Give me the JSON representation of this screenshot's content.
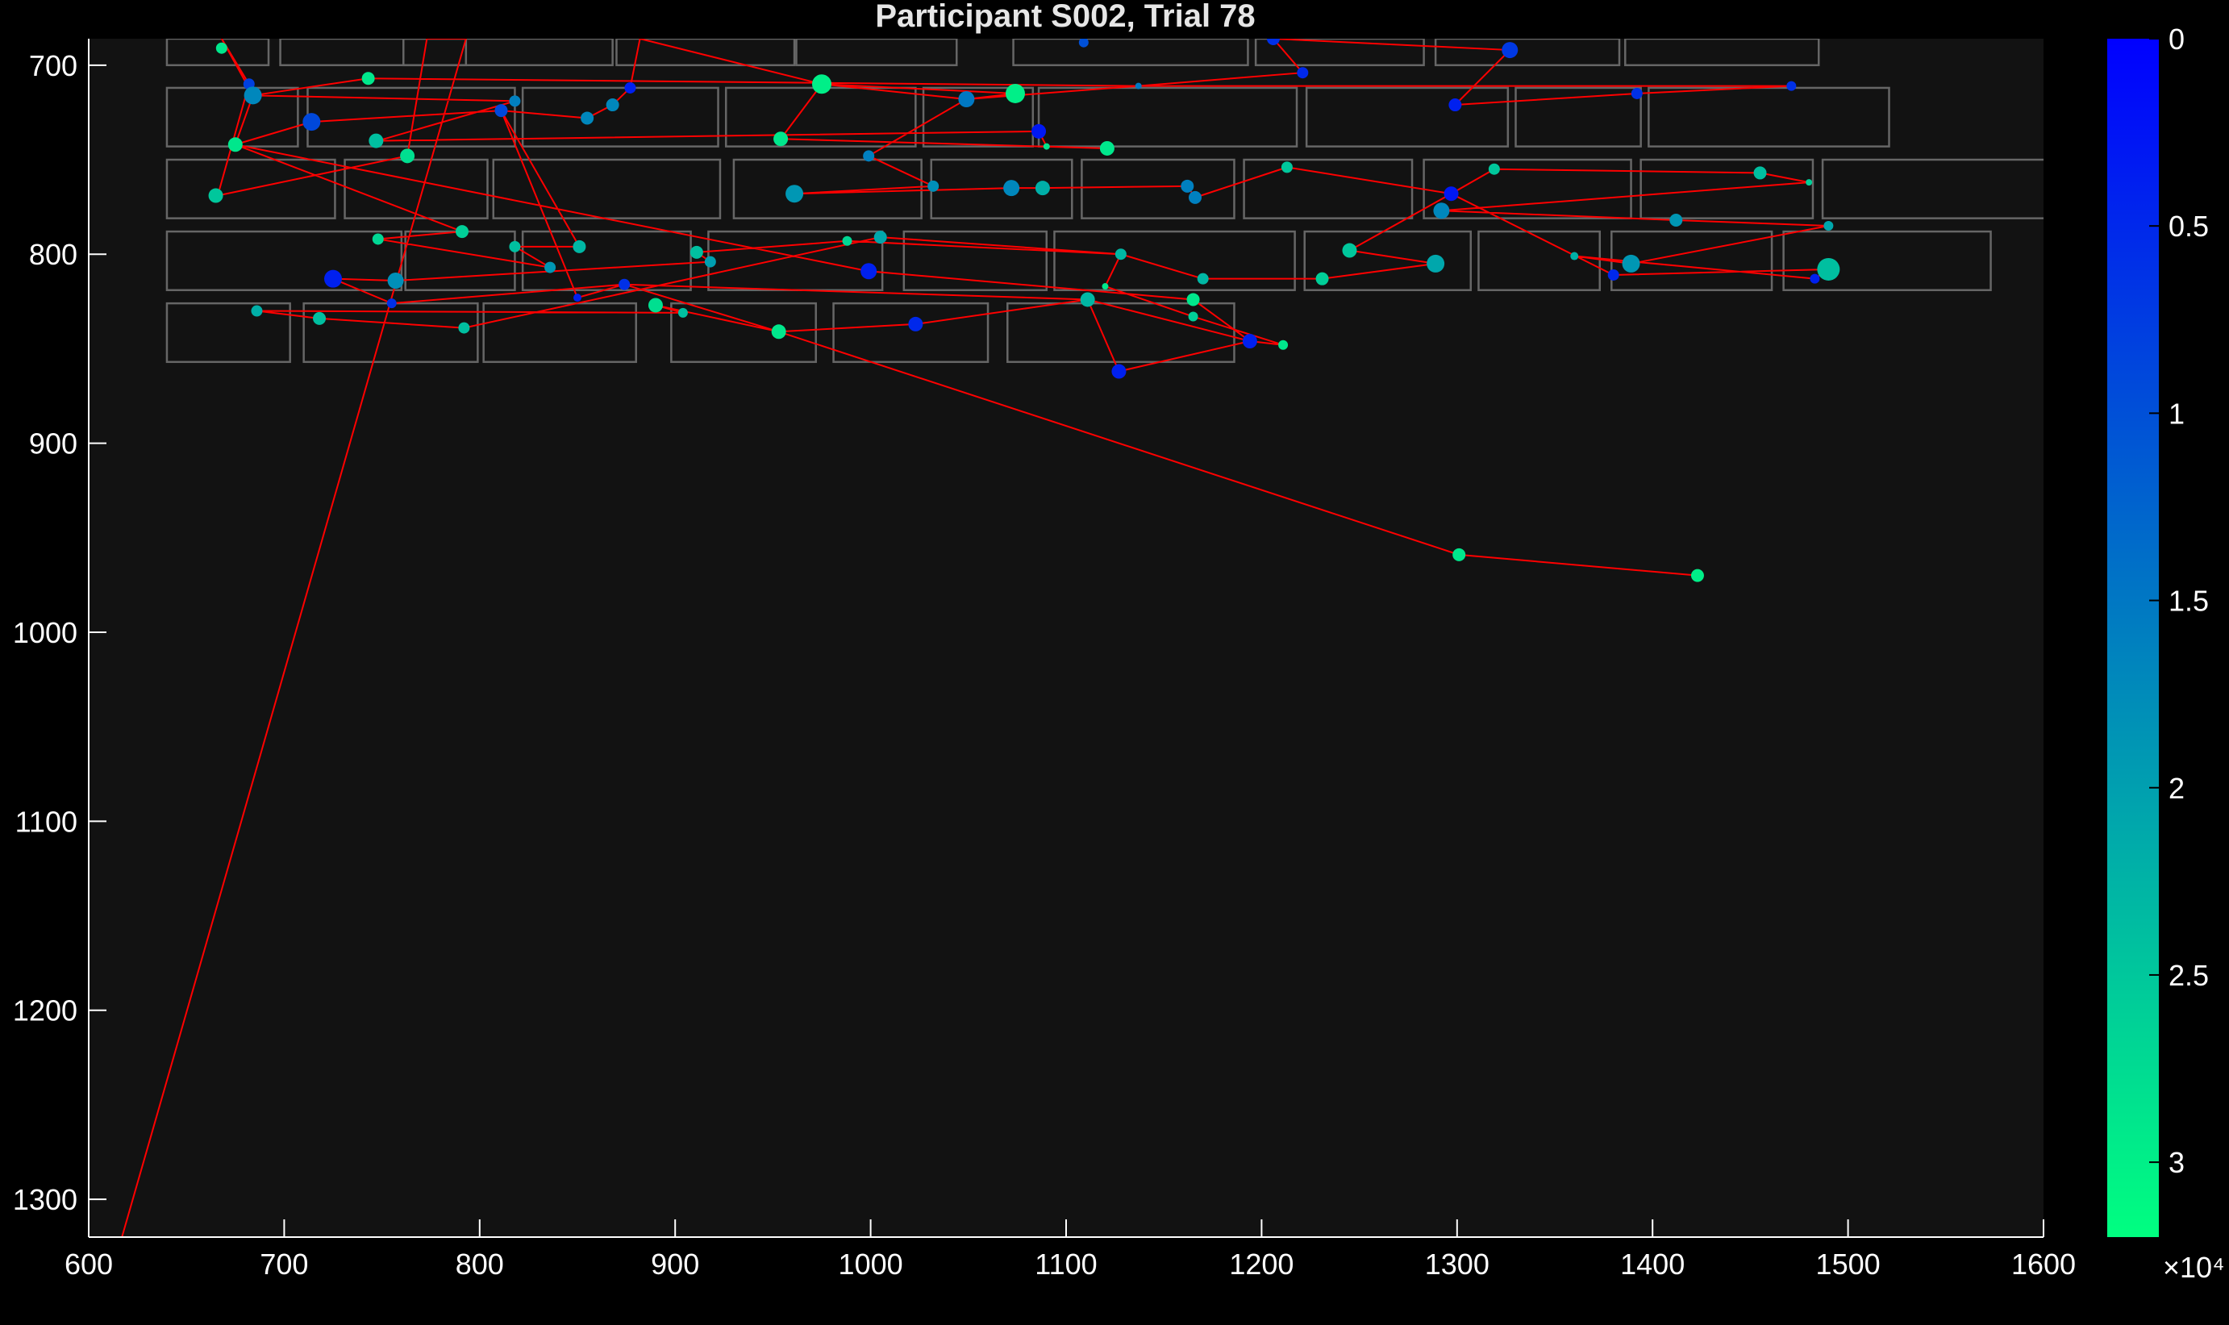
{
  "chart_data": {
    "type": "scatter",
    "title": "Participant S002, Trial 78",
    "xlabel": "",
    "ylabel": "",
    "xlim": [
      600,
      1600
    ],
    "ylim": [
      1320,
      686
    ],
    "y_reversed": true,
    "grid": false,
    "background": "#121212",
    "xticks": [
      600,
      700,
      800,
      900,
      1000,
      1100,
      1200,
      1300,
      1400,
      1500,
      1600
    ],
    "yticks": [
      700,
      800,
      900,
      1000,
      1100,
      1200,
      1300
    ],
    "colorbar": {
      "range": [
        0,
        3.2
      ],
      "ticks": [
        0,
        0.5,
        1,
        1.5,
        2,
        2.5,
        3
      ],
      "multiplier": "×10⁴",
      "reversed": true,
      "colors": [
        "#0000ff",
        "#00ff80"
      ]
    },
    "line_color": "#ff0000",
    "box_color": "#666666",
    "word_boxes": [
      [
        640,
        686,
        692,
        700
      ],
      [
        698,
        686,
        793,
        700
      ],
      [
        761,
        686,
        868,
        700
      ],
      [
        870,
        686,
        961,
        700
      ],
      [
        962,
        686,
        1044,
        700
      ],
      [
        1073,
        686,
        1193,
        700
      ],
      [
        1197,
        686,
        1283,
        700
      ],
      [
        1289,
        686,
        1383,
        700
      ],
      [
        1386,
        686,
        1485,
        700
      ],
      [
        640,
        712,
        707,
        743
      ],
      [
        712,
        712,
        818,
        743
      ],
      [
        822,
        712,
        922,
        743
      ],
      [
        926,
        712,
        1023,
        743
      ],
      [
        1027,
        712,
        1083,
        743
      ],
      [
        1086,
        712,
        1218,
        743
      ],
      [
        1223,
        712,
        1326,
        743
      ],
      [
        1330,
        712,
        1394,
        743
      ],
      [
        1398,
        712,
        1521,
        743
      ],
      [
        640,
        750,
        726,
        781
      ],
      [
        731,
        750,
        804,
        781
      ],
      [
        807,
        750,
        923,
        781
      ],
      [
        930,
        750,
        1026,
        781
      ],
      [
        1031,
        750,
        1103,
        781
      ],
      [
        1108,
        750,
        1186,
        781
      ],
      [
        1191,
        750,
        1277,
        781
      ],
      [
        1283,
        750,
        1389,
        781
      ],
      [
        1394,
        750,
        1482,
        781
      ],
      [
        1487,
        750,
        1604,
        781
      ],
      [
        640,
        788,
        760,
        819
      ],
      [
        762,
        788,
        818,
        819
      ],
      [
        822,
        788,
        908,
        819
      ],
      [
        917,
        788,
        1006,
        819
      ],
      [
        1017,
        788,
        1090,
        819
      ],
      [
        1094,
        788,
        1217,
        819
      ],
      [
        1222,
        788,
        1307,
        819
      ],
      [
        1311,
        788,
        1373,
        819
      ],
      [
        1379,
        788,
        1461,
        819
      ],
      [
        1467,
        788,
        1573,
        819
      ],
      [
        640,
        826,
        703,
        857
      ],
      [
        710,
        826,
        799,
        857
      ],
      [
        802,
        826,
        880,
        857
      ],
      [
        898,
        826,
        972,
        857
      ],
      [
        981,
        826,
        1060,
        857
      ],
      [
        1070,
        826,
        1186,
        857
      ]
    ],
    "fixations": [
      {
        "x": 668,
        "y": 691,
        "d": 2.9,
        "r": 7
      },
      {
        "x": 743,
        "y": 707,
        "d": 2.9,
        "r": 8
      },
      {
        "x": 682,
        "y": 710,
        "d": 0.8,
        "r": 7
      },
      {
        "x": 684,
        "y": 716,
        "d": 1.7,
        "r": 11
      },
      {
        "x": 714,
        "y": 730,
        "d": 0.9,
        "r": 11
      },
      {
        "x": 811,
        "y": 724,
        "d": 0.9,
        "r": 8
      },
      {
        "x": 818,
        "y": 719,
        "d": 1.6,
        "r": 7
      },
      {
        "x": 855,
        "y": 728,
        "d": 1.7,
        "r": 8
      },
      {
        "x": 868,
        "y": 721,
        "d": 1.7,
        "r": 8
      },
      {
        "x": 877,
        "y": 712,
        "d": 0.4,
        "r": 7
      },
      {
        "x": 975,
        "y": 710,
        "d": 3.0,
        "r": 12
      },
      {
        "x": 1049,
        "y": 718,
        "d": 1.5,
        "r": 10
      },
      {
        "x": 1074,
        "y": 715,
        "d": 3.0,
        "r": 12
      },
      {
        "x": 1109,
        "y": 688,
        "d": 1.0,
        "r": 6
      },
      {
        "x": 1137,
        "y": 711,
        "d": 1.5,
        "r": 4
      },
      {
        "x": 1206,
        "y": 686,
        "d": 0.6,
        "r": 8
      },
      {
        "x": 1221,
        "y": 704,
        "d": 0.5,
        "r": 7
      },
      {
        "x": 1327,
        "y": 692,
        "d": 0.7,
        "r": 10
      },
      {
        "x": 1299,
        "y": 721,
        "d": 0.4,
        "r": 8
      },
      {
        "x": 1392,
        "y": 715,
        "d": 0.6,
        "r": 7
      },
      {
        "x": 1471,
        "y": 711,
        "d": 0.6,
        "r": 6
      },
      {
        "x": 675,
        "y": 742,
        "d": 2.9,
        "r": 9
      },
      {
        "x": 747,
        "y": 740,
        "d": 2.4,
        "r": 9
      },
      {
        "x": 763,
        "y": 748,
        "d": 2.8,
        "r": 9
      },
      {
        "x": 665,
        "y": 769,
        "d": 2.5,
        "r": 9
      },
      {
        "x": 954,
        "y": 739,
        "d": 2.9,
        "r": 9
      },
      {
        "x": 999,
        "y": 748,
        "d": 1.6,
        "r": 7
      },
      {
        "x": 1086,
        "y": 735,
        "d": 0.3,
        "r": 9
      },
      {
        "x": 1090,
        "y": 743,
        "d": 2.9,
        "r": 4
      },
      {
        "x": 1121,
        "y": 744,
        "d": 2.9,
        "r": 9
      },
      {
        "x": 961,
        "y": 768,
        "d": 1.9,
        "r": 11
      },
      {
        "x": 1032,
        "y": 764,
        "d": 1.8,
        "r": 7
      },
      {
        "x": 1072,
        "y": 765,
        "d": 1.7,
        "r": 10
      },
      {
        "x": 1088,
        "y": 765,
        "d": 2.2,
        "r": 9
      },
      {
        "x": 1162,
        "y": 764,
        "d": 1.6,
        "r": 8
      },
      {
        "x": 1166,
        "y": 770,
        "d": 1.6,
        "r": 8
      },
      {
        "x": 1213,
        "y": 754,
        "d": 2.5,
        "r": 7
      },
      {
        "x": 1297,
        "y": 768,
        "d": 0.3,
        "r": 9
      },
      {
        "x": 1319,
        "y": 755,
        "d": 2.5,
        "r": 7
      },
      {
        "x": 1292,
        "y": 777,
        "d": 1.7,
        "r": 10
      },
      {
        "x": 1412,
        "y": 782,
        "d": 1.9,
        "r": 8
      },
      {
        "x": 1455,
        "y": 757,
        "d": 2.4,
        "r": 8
      },
      {
        "x": 1480,
        "y": 762,
        "d": 2.6,
        "r": 4
      },
      {
        "x": 1490,
        "y": 785,
        "d": 2.1,
        "r": 6
      },
      {
        "x": 748,
        "y": 792,
        "d": 2.7,
        "r": 7
      },
      {
        "x": 791,
        "y": 788,
        "d": 2.6,
        "r": 8
      },
      {
        "x": 818,
        "y": 796,
        "d": 2.4,
        "r": 7
      },
      {
        "x": 851,
        "y": 796,
        "d": 2.3,
        "r": 8
      },
      {
        "x": 836,
        "y": 807,
        "d": 1.9,
        "r": 7
      },
      {
        "x": 725,
        "y": 813,
        "d": 0.4,
        "r": 11
      },
      {
        "x": 757,
        "y": 814,
        "d": 1.8,
        "r": 10
      },
      {
        "x": 755,
        "y": 826,
        "d": 0.6,
        "r": 6
      },
      {
        "x": 850,
        "y": 823,
        "d": 0.4,
        "r": 5
      },
      {
        "x": 874,
        "y": 816,
        "d": 0.6,
        "r": 7
      },
      {
        "x": 911,
        "y": 799,
        "d": 2.4,
        "r": 8
      },
      {
        "x": 918,
        "y": 804,
        "d": 2.0,
        "r": 7
      },
      {
        "x": 988,
        "y": 793,
        "d": 2.7,
        "r": 6
      },
      {
        "x": 1005,
        "y": 791,
        "d": 2.1,
        "r": 8
      },
      {
        "x": 999,
        "y": 809,
        "d": 0.4,
        "r": 10
      },
      {
        "x": 1128,
        "y": 800,
        "d": 2.3,
        "r": 7
      },
      {
        "x": 1120,
        "y": 817,
        "d": 2.9,
        "r": 4
      },
      {
        "x": 1170,
        "y": 813,
        "d": 2.3,
        "r": 7
      },
      {
        "x": 1111,
        "y": 824,
        "d": 2.3,
        "r": 9
      },
      {
        "x": 1165,
        "y": 824,
        "d": 2.9,
        "r": 8
      },
      {
        "x": 1165,
        "y": 833,
        "d": 2.6,
        "r": 6
      },
      {
        "x": 1245,
        "y": 798,
        "d": 2.5,
        "r": 9
      },
      {
        "x": 1231,
        "y": 813,
        "d": 2.6,
        "r": 8
      },
      {
        "x": 1289,
        "y": 805,
        "d": 2.1,
        "r": 11
      },
      {
        "x": 1360,
        "y": 801,
        "d": 2.2,
        "r": 5
      },
      {
        "x": 1380,
        "y": 811,
        "d": 0.5,
        "r": 7
      },
      {
        "x": 1389,
        "y": 805,
        "d": 1.9,
        "r": 11
      },
      {
        "x": 1483,
        "y": 813,
        "d": 0.4,
        "r": 6
      },
      {
        "x": 1490,
        "y": 808,
        "d": 2.4,
        "r": 14
      },
      {
        "x": 686,
        "y": 830,
        "d": 2.2,
        "r": 7
      },
      {
        "x": 718,
        "y": 834,
        "d": 2.4,
        "r": 8
      },
      {
        "x": 792,
        "y": 839,
        "d": 2.4,
        "r": 7
      },
      {
        "x": 890,
        "y": 827,
        "d": 2.8,
        "r": 9
      },
      {
        "x": 904,
        "y": 831,
        "d": 2.4,
        "r": 6
      },
      {
        "x": 953,
        "y": 841,
        "d": 2.9,
        "r": 9
      },
      {
        "x": 1023,
        "y": 837,
        "d": 0.5,
        "r": 9
      },
      {
        "x": 1194,
        "y": 846,
        "d": 0.4,
        "r": 9
      },
      {
        "x": 1211,
        "y": 848,
        "d": 2.9,
        "r": 6
      },
      {
        "x": 1127,
        "y": 862,
        "d": 0.4,
        "r": 9
      },
      {
        "x": 1301,
        "y": 959,
        "d": 2.9,
        "r": 8
      },
      {
        "x": 1423,
        "y": 970,
        "d": 3.0,
        "r": 8
      }
    ],
    "scanpath": [
      [
        617,
        1320
      ],
      [
        793,
        686
      ],
      [
        773,
        686
      ],
      [
        763,
        748
      ],
      [
        666,
        769
      ],
      [
        682,
        710
      ],
      [
        668,
        686
      ],
      [
        684,
        716
      ],
      [
        675,
        742
      ],
      [
        714,
        730
      ],
      [
        811,
        724
      ],
      [
        855,
        728
      ],
      [
        868,
        721
      ],
      [
        877,
        712
      ],
      [
        882,
        686
      ],
      [
        975,
        710
      ],
      [
        1074,
        715
      ],
      [
        1049,
        718
      ],
      [
        1137,
        711
      ],
      [
        1221,
        704
      ],
      [
        1206,
        686
      ],
      [
        1327,
        692
      ],
      [
        1299,
        721
      ],
      [
        1392,
        715
      ],
      [
        1471,
        711
      ],
      [
        1137,
        711
      ],
      [
        743,
        707
      ],
      [
        684,
        716
      ],
      [
        818,
        719
      ],
      [
        748,
        740
      ],
      [
        1086,
        735
      ],
      [
        1090,
        743
      ],
      [
        1121,
        744
      ],
      [
        954,
        739
      ],
      [
        975,
        710
      ],
      [
        1049,
        718
      ],
      [
        999,
        748
      ],
      [
        1032,
        764
      ],
      [
        961,
        768
      ],
      [
        1072,
        765
      ],
      [
        1088,
        765
      ],
      [
        1162,
        764
      ],
      [
        1166,
        770
      ],
      [
        1213,
        754
      ],
      [
        1297,
        768
      ],
      [
        1319,
        755
      ],
      [
        1455,
        757
      ],
      [
        1480,
        762
      ],
      [
        1292,
        777
      ],
      [
        1412,
        782
      ],
      [
        1490,
        785
      ],
      [
        1389,
        805
      ],
      [
        1360,
        801
      ],
      [
        1483,
        813
      ],
      [
        1490,
        808
      ],
      [
        1380,
        811
      ],
      [
        1297,
        768
      ],
      [
        1245,
        798
      ],
      [
        1289,
        805
      ],
      [
        1231,
        813
      ],
      [
        1170,
        813
      ],
      [
        1128,
        800
      ],
      [
        1120,
        817
      ],
      [
        1165,
        833
      ],
      [
        1211,
        848
      ],
      [
        1194,
        846
      ],
      [
        1111,
        824
      ],
      [
        1023,
        837
      ],
      [
        953,
        841
      ],
      [
        890,
        827
      ],
      [
        904,
        831
      ],
      [
        686,
        830
      ],
      [
        718,
        834
      ],
      [
        792,
        839
      ],
      [
        1005,
        791
      ],
      [
        1128,
        800
      ],
      [
        988,
        793
      ],
      [
        911,
        799
      ],
      [
        918,
        804
      ],
      [
        757,
        814
      ],
      [
        725,
        813
      ],
      [
        755,
        826
      ],
      [
        874,
        816
      ],
      [
        850,
        823
      ],
      [
        811,
        724
      ],
      [
        851,
        796
      ],
      [
        818,
        796
      ],
      [
        836,
        807
      ],
      [
        748,
        792
      ],
      [
        791,
        788
      ],
      [
        675,
        742
      ],
      [
        999,
        809
      ],
      [
        1165,
        824
      ],
      [
        1194,
        846
      ],
      [
        1127,
        862
      ],
      [
        1111,
        824
      ],
      [
        874,
        816
      ],
      [
        953,
        841
      ],
      [
        1301,
        959
      ],
      [
        1423,
        970
      ]
    ]
  }
}
